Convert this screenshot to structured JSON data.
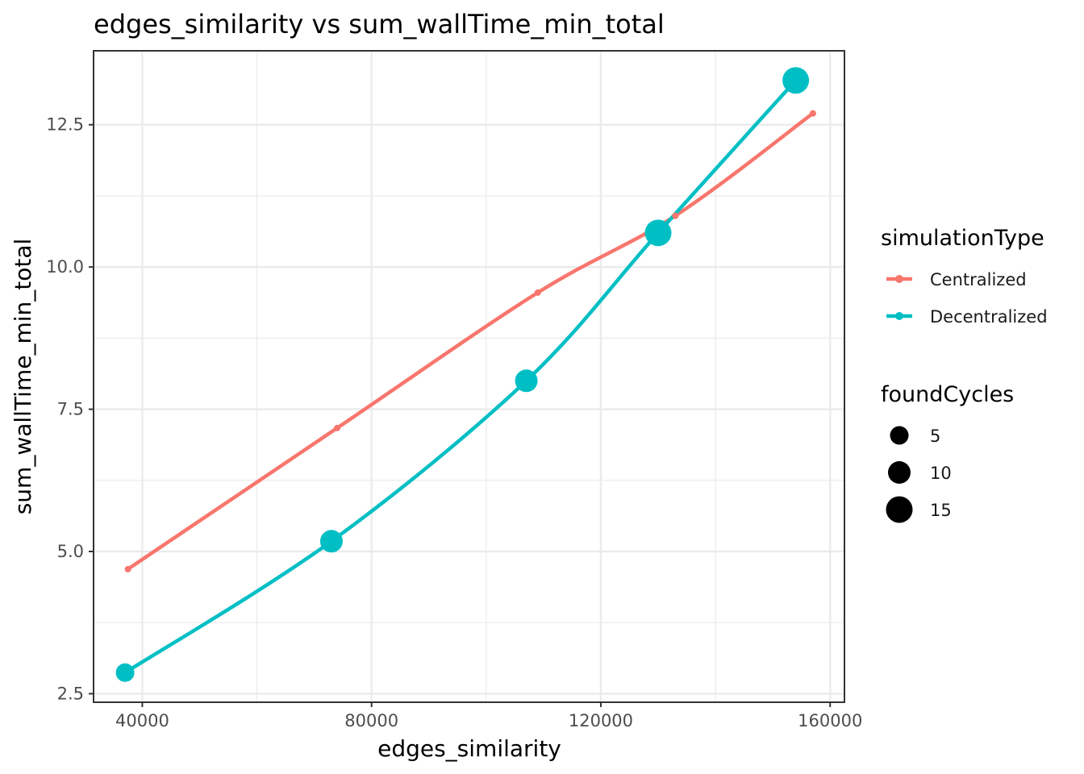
{
  "chart_data": {
    "type": "line",
    "title": "edges_similarity  vs  sum_wallTime_min_total",
    "xlabel": "edges_similarity",
    "ylabel": "sum_wallTime_min_total",
    "xlim": [
      31500,
      162500
    ],
    "ylim": [
      2.35,
      13.8
    ],
    "x_ticks": [
      40000,
      80000,
      120000,
      160000
    ],
    "x_tick_labels": [
      "40000",
      "80000",
      "120000",
      "160000"
    ],
    "y_ticks": [
      2.5,
      5.0,
      7.5,
      10.0,
      12.5
    ],
    "y_tick_labels": [
      "2.5",
      "5.0",
      "7.5",
      "10.0",
      "12.5"
    ],
    "grid": true,
    "legend_position": "right",
    "series": [
      {
        "name": "Centralized",
        "color": "#F8766D",
        "x": [
          37500,
          74000,
          109000,
          133000,
          157000
        ],
        "y": [
          4.69,
          7.17,
          9.55,
          10.9,
          12.7
        ],
        "foundCycles": [
          0,
          0,
          0,
          0,
          0
        ]
      },
      {
        "name": "Decentralized",
        "color": "#00BFC4",
        "x": [
          37000,
          73000,
          107000,
          130000,
          154000
        ],
        "y": [
          2.87,
          5.18,
          8.0,
          10.6,
          13.28
        ],
        "foundCycles": [
          5,
          10,
          10,
          15,
          15
        ]
      }
    ],
    "legend": {
      "color_title": "simulationType",
      "size_title": "foundCycles",
      "size_entries": [
        {
          "label": "5",
          "value": 5
        },
        {
          "label": "10",
          "value": 10
        },
        {
          "label": "15",
          "value": 15
        }
      ]
    }
  }
}
